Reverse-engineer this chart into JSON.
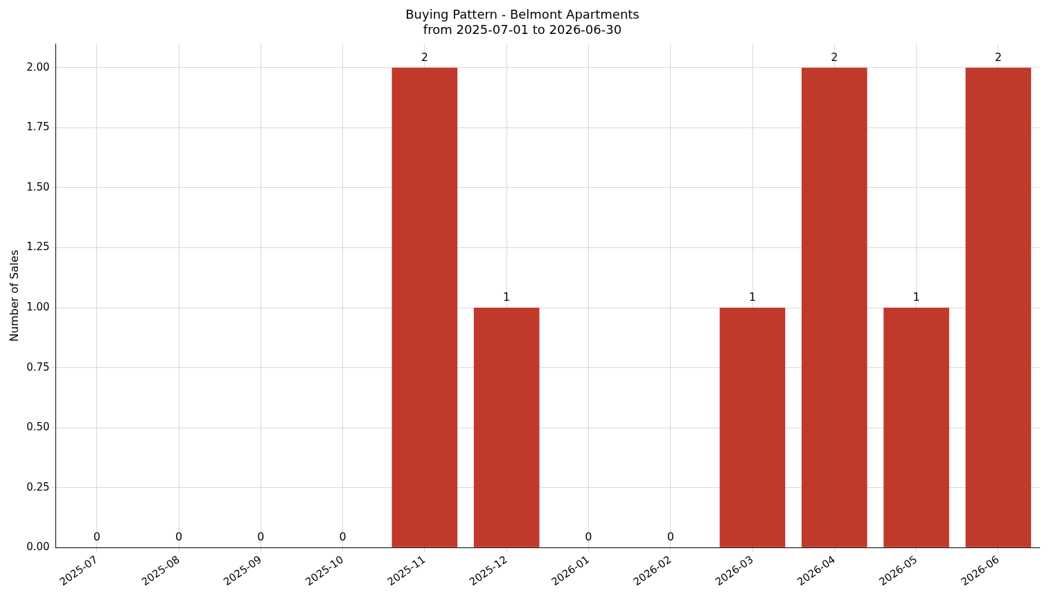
{
  "chart_data": {
    "type": "bar",
    "title": "Buying Pattern - Belmont Apartments\nfrom 2025-07-01 to 2026-06-30",
    "ylabel": "Number of Sales",
    "categories": [
      "2025-07",
      "2025-08",
      "2025-09",
      "2025-10",
      "2025-11",
      "2025-12",
      "2026-01",
      "2026-02",
      "2026-03",
      "2026-04",
      "2026-05",
      "2026-06"
    ],
    "values": [
      0,
      0,
      0,
      0,
      2,
      1,
      0,
      0,
      1,
      2,
      1,
      2
    ],
    "color": "#c0392b",
    "ylim": [
      0,
      2.1
    ],
    "yticks": [
      {
        "value": 0,
        "label": "0.00"
      },
      {
        "value": 0.25,
        "label": "0.25"
      },
      {
        "value": 0.5,
        "label": "0.50"
      },
      {
        "value": 0.75,
        "label": "0.75"
      },
      {
        "value": 1,
        "label": "1.00"
      },
      {
        "value": 1.25,
        "label": "1.25"
      },
      {
        "value": 1.5,
        "label": "1.50"
      },
      {
        "value": 1.75,
        "label": "1.75"
      },
      {
        "value": 2,
        "label": "2.00"
      }
    ],
    "grid": true,
    "data_labels": true
  }
}
